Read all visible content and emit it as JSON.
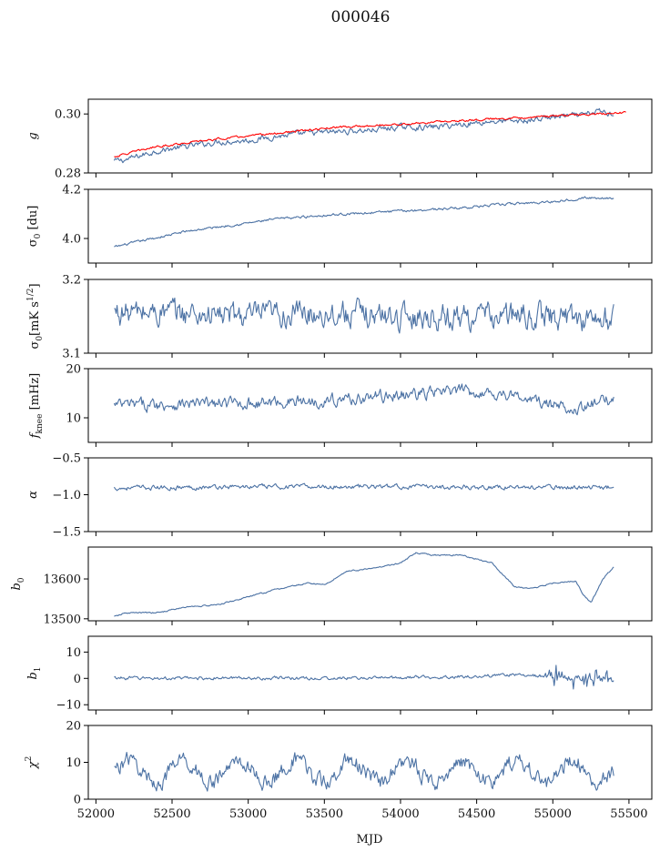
{
  "title": "000046",
  "colors": {
    "series": "#4c72a4",
    "fit": "#ff0000"
  },
  "chart_data": {
    "type": "line",
    "shared_x": {
      "label": "MJD",
      "range": [
        51950,
        55650
      ],
      "ticks": [
        52000,
        52500,
        53000,
        53500,
        54000,
        54500,
        55000,
        55500
      ],
      "tick_labels": [
        "52000",
        "52500",
        "53000",
        "53500",
        "54000",
        "54500",
        "55000",
        "55500"
      ]
    },
    "panels": [
      {
        "key": "g",
        "ylabel": "g",
        "ylim": [
          0.28,
          0.305
        ],
        "yticks": [
          0.28,
          0.3
        ],
        "ytick_labels": [
          "0.28",
          "0.30"
        ],
        "series": [
          {
            "role": "data",
            "x": [
              52120,
              52200,
              52400,
              52600,
              52800,
              53000,
              53200,
              53400,
              53600,
              53800,
              54000,
              54200,
              54400,
              54600,
              54800,
              55000,
              55200,
              55300,
              55400
            ],
            "y": [
              0.284,
              0.2845,
              0.2875,
              0.289,
              0.2905,
              0.291,
              0.2925,
              0.2935,
              0.294,
              0.2945,
              0.2955,
              0.2955,
              0.2965,
              0.2975,
              0.2975,
              0.299,
              0.2995,
              0.301,
              0.3
            ],
            "noise": 0.0008
          },
          {
            "role": "fit",
            "x": [
              52120,
              52400,
              52800,
              53200,
              53600,
              54000,
              54400,
              54800,
              55200,
              55480
            ],
            "y": [
              0.2855,
              0.289,
              0.2915,
              0.2935,
              0.2955,
              0.2965,
              0.2978,
              0.2988,
              0.2998,
              0.3005
            ],
            "noise": 0.0003
          }
        ]
      },
      {
        "key": "sigma0_du",
        "ylabel": "σ0 [du]",
        "ylim": [
          3.9,
          4.2
        ],
        "yticks": [
          4.0,
          4.2
        ],
        "ytick_labels": [
          "4.0",
          "4.2"
        ],
        "series": [
          {
            "role": "data",
            "x": [
              52120,
              52300,
              52600,
              52900,
              53200,
              53500,
              53800,
              54100,
              54400,
              54700,
              55000,
              55200,
              55400
            ],
            "y": [
              3.965,
              3.99,
              4.03,
              4.055,
              4.08,
              4.095,
              4.105,
              4.115,
              4.125,
              4.14,
              4.15,
              4.165,
              4.165
            ],
            "noise": 0.004
          }
        ]
      },
      {
        "key": "sigma0_mk",
        "ylabel": "σ0[mK s^1/2]",
        "ylim": [
          3.1,
          3.2
        ],
        "yticks": [
          3.1,
          3.2
        ],
        "ytick_labels": [
          "3.1",
          "3.2"
        ],
        "series": [
          {
            "role": "data",
            "x": [
              52120,
              52500,
              53000,
              53500,
              54000,
              54500,
              55000,
              55400
            ],
            "y": [
              3.155,
              3.155,
              3.15,
              3.155,
              3.15,
              3.15,
              3.15,
              3.145
            ],
            "noise": 0.014
          }
        ]
      },
      {
        "key": "fknee",
        "ylabel": "fknee [mHz]",
        "ylim": [
          5,
          20
        ],
        "yticks": [
          10,
          20
        ],
        "ytick_labels": [
          "10",
          "20"
        ],
        "series": [
          {
            "role": "data",
            "x": [
              52120,
              52500,
              53000,
              53500,
              53800,
              54100,
              54400,
              54700,
              55000,
              55200,
              55400
            ],
            "y": [
              12.5,
              12.8,
              13.0,
              13.5,
              14.2,
              14.8,
              15.5,
              14.8,
              12.5,
              12.0,
              14.0
            ],
            "noise": 1.0
          }
        ]
      },
      {
        "key": "alpha",
        "ylabel": "α",
        "ylim": [
          -1.5,
          -0.5
        ],
        "yticks": [
          -1.5,
          -1.0,
          -0.5
        ],
        "ytick_labels": [
          "−1.5",
          "−1.0",
          "−0.5"
        ],
        "series": [
          {
            "role": "data",
            "x": [
              52120,
              53000,
              54000,
              55000,
              55400
            ],
            "y": [
              -0.91,
              -0.89,
              -0.89,
              -0.9,
              -0.9
            ],
            "noise": 0.025
          }
        ]
      },
      {
        "key": "b0",
        "ylabel": "b0",
        "ylim": [
          13495,
          13680
        ],
        "yticks": [
          13500,
          13600
        ],
        "ytick_labels": [
          "13500",
          "13600"
        ],
        "series": [
          {
            "role": "data",
            "x": [
              52120,
              52200,
              52400,
              52600,
              52800,
              53000,
              53200,
              53400,
              53500,
              53650,
              53800,
              54000,
              54100,
              54200,
              54400,
              54600,
              54750,
              54850,
              55000,
              55150,
              55200,
              55250,
              55330,
              55400
            ],
            "y": [
              13505,
              13515,
              13515,
              13530,
              13535,
              13555,
              13575,
              13590,
              13585,
              13620,
              13625,
              13640,
              13665,
              13660,
              13660,
              13640,
              13580,
              13575,
              13590,
              13595,
              13560,
              13540,
              13600,
              13630
            ],
            "noise": 1.5
          }
        ]
      },
      {
        "key": "b1",
        "ylabel": "b1",
        "ylim": [
          -12,
          16
        ],
        "yticks": [
          -10,
          0,
          10
        ],
        "ytick_labels": [
          "−10",
          "0",
          "10"
        ],
        "series": [
          {
            "role": "data",
            "x": [
              52120,
              52500,
              53000,
              53500,
              54000,
              54500,
              54800,
              55000,
              55400
            ],
            "y": [
              0.2,
              0.0,
              0.2,
              0.0,
              0.3,
              0.8,
              1.5,
              0.5,
              0.0
            ],
            "noise": 0.5
          }
        ]
      },
      {
        "key": "chi2",
        "ylabel": "χ²",
        "ylim": [
          0,
          20
        ],
        "yticks": [
          0,
          10,
          20
        ],
        "ytick_labels": [
          "0",
          "10",
          "20"
        ],
        "series": [
          {
            "role": "data",
            "x": [
              52120,
              53000,
              54000,
              55000,
              55400
            ],
            "y": [
              7.5,
              7.5,
              7.5,
              7.5,
              8.0
            ],
            "noise": 1.8,
            "period": 365,
            "amplitude": 3.0
          }
        ]
      }
    ]
  }
}
